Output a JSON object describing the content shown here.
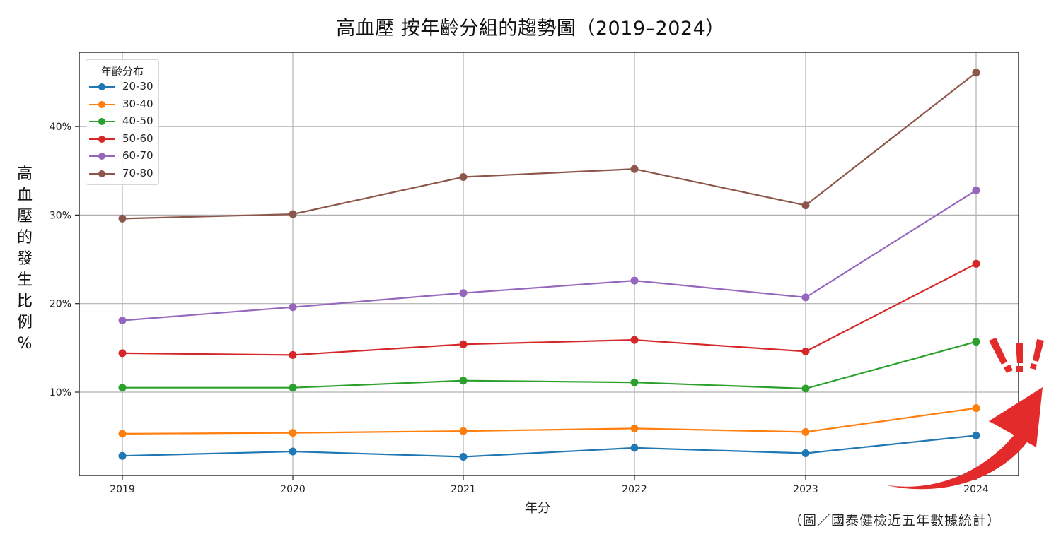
{
  "chart_data": {
    "type": "line",
    "title": "高血壓 按年齡分組的趨勢圖（2019–2024）",
    "xlabel": "年分",
    "ylabel": "高血壓的發生比例 %",
    "x": [
      "2019",
      "2020",
      "2021",
      "2022",
      "2023",
      "2024"
    ],
    "yticks": [
      "10%",
      "20%",
      "30%",
      "40%"
    ],
    "ytick_values": [
      10,
      20,
      30,
      40
    ],
    "ylim": [
      0.6,
      48.3
    ],
    "grid": true,
    "legend_title": "年齡分布",
    "legend_position": "upper left",
    "series": [
      {
        "name": "20-30",
        "color": "#1f77b4",
        "values": [
          2.8,
          3.3,
          2.7,
          3.7,
          3.1,
          5.1
        ]
      },
      {
        "name": "30-40",
        "color": "#ff7f0e",
        "values": [
          5.3,
          5.4,
          5.6,
          5.9,
          5.5,
          8.2
        ]
      },
      {
        "name": "40-50",
        "color": "#2ca02c",
        "values": [
          10.5,
          10.5,
          11.3,
          11.1,
          10.4,
          15.7
        ]
      },
      {
        "name": "50-60",
        "color": "#d62728",
        "values": [
          14.4,
          14.2,
          15.4,
          15.9,
          14.6,
          24.5
        ]
      },
      {
        "name": "60-70",
        "color": "#9467bd",
        "values": [
          18.1,
          19.6,
          21.2,
          22.6,
          20.7,
          32.8
        ]
      },
      {
        "name": "70-80",
        "color": "#8c564b",
        "values": [
          29.6,
          30.1,
          34.3,
          35.2,
          31.1,
          46.1
        ]
      }
    ],
    "annotations": [
      "red upward arrow with exclamation marks near 2024",
      "（圖／國泰健檢近五年數據統計）"
    ]
  },
  "page": {
    "title": "高血壓 按年齡分組的趨勢圖（2019–2024）",
    "ylabel_chars": [
      "高",
      "血",
      "壓",
      "的",
      "發",
      "生",
      "比",
      "例",
      "%"
    ],
    "xlabel": "年分",
    "source_note": "（圖／國泰健檢近五年數據統計）",
    "legend": {
      "title": "年齡分布",
      "items": [
        {
          "label": "20-30",
          "color": "#1f77b4"
        },
        {
          "label": "30-40",
          "color": "#ff7f0e"
        },
        {
          "label": "40-50",
          "color": "#2ca02c"
        },
        {
          "label": "50-60",
          "color": "#d62728"
        },
        {
          "label": "60-70",
          "color": "#9467bd"
        },
        {
          "label": "70-80",
          "color": "#8c564b"
        }
      ]
    },
    "annotation_color": "#e32b2b"
  }
}
